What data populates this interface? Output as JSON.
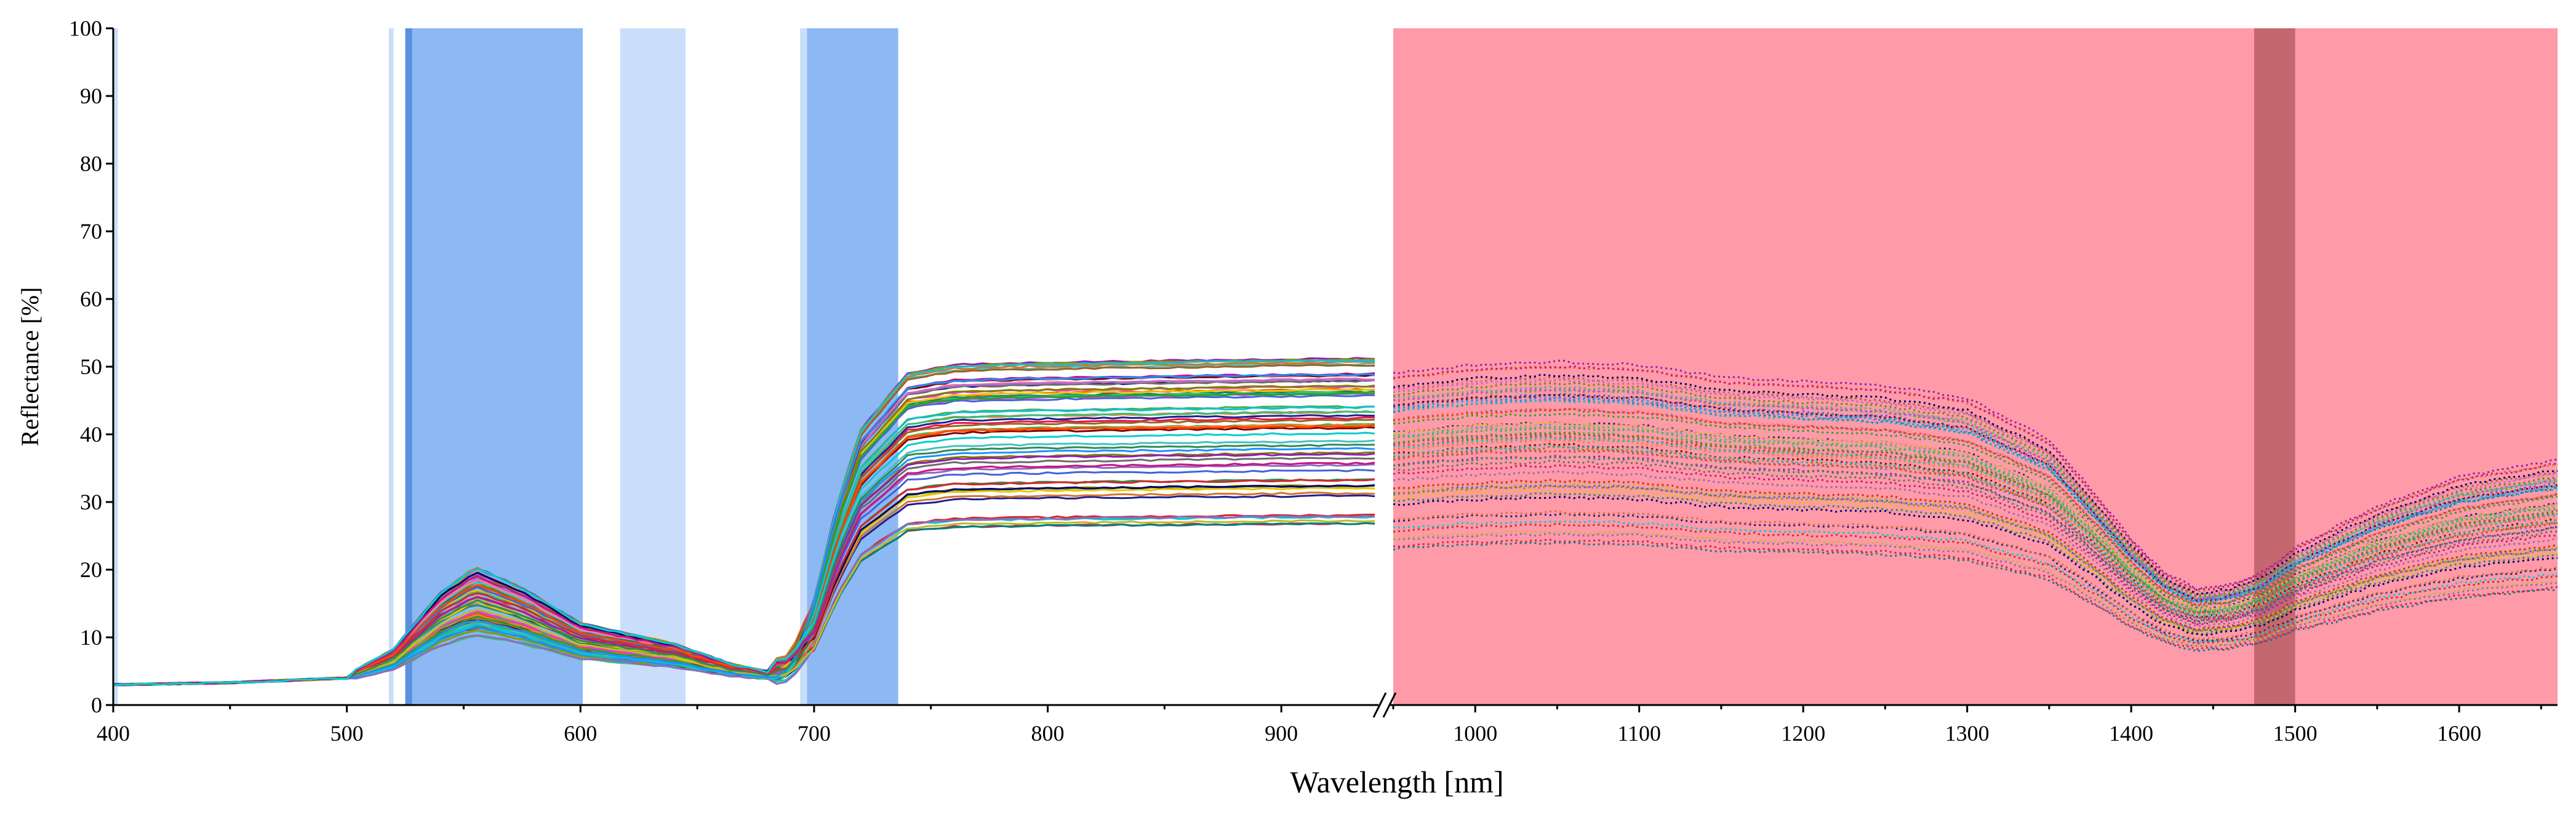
{
  "chart_data": {
    "type": "line",
    "title": "",
    "xlabel": "Wavelength [nm]",
    "ylabel": "Reflectance [%]",
    "ylim": [
      0,
      100
    ],
    "yticks": [
      0,
      10,
      20,
      30,
      40,
      50,
      60,
      70,
      80,
      90,
      100
    ],
    "xlim_left": [
      400,
      940
    ],
    "xlim_right": [
      950,
      1660
    ],
    "xticks_left": [
      400,
      500,
      600,
      700,
      800,
      900
    ],
    "xticks_right": [
      1000,
      1100,
      1200,
      1300,
      1400,
      1500,
      1600
    ],
    "axis_break": "between 940 and 950 nm",
    "highlight_bands": [
      {
        "start": 400,
        "end": 402,
        "color": "#c9defa",
        "shade": "light blue"
      },
      {
        "start": 518,
        "end": 520,
        "color": "#c9defa",
        "shade": "light blue"
      },
      {
        "start": 525,
        "end": 528,
        "color": "#5b8fe0",
        "shade": "dark blue"
      },
      {
        "start": 528,
        "end": 601,
        "color": "#8cb8f3",
        "shade": "medium blue"
      },
      {
        "start": 617,
        "end": 645,
        "color": "#c9defa",
        "shade": "light blue"
      },
      {
        "start": 694,
        "end": 697,
        "color": "#c9defa",
        "shade": "light blue"
      },
      {
        "start": 697,
        "end": 736,
        "color": "#8cb8f3",
        "shade": "medium blue"
      },
      {
        "start": 950,
        "end": 1660,
        "color": "#ff9aa8",
        "shade": "pink"
      },
      {
        "start": 1475,
        "end": 1500,
        "color": "#c4676f",
        "shade": "dark red"
      }
    ],
    "reference_spectrum": {
      "wavelengths": [
        400,
        450,
        500,
        520,
        540,
        555,
        575,
        600,
        620,
        640,
        665,
        680,
        690,
        700,
        710,
        720,
        740,
        760,
        800,
        850,
        900,
        940,
        950,
        1000,
        1050,
        1100,
        1150,
        1200,
        1250,
        1300,
        1350,
        1380,
        1400,
        1420,
        1440,
        1460,
        1480,
        1500,
        1550,
        1600,
        1660
      ],
      "reflectance": [
        3,
        3.3,
        4,
        6.5,
        12,
        14.5,
        12.5,
        9,
        8,
        7,
        5,
        4.3,
        5.5,
        13,
        25,
        34,
        41,
        42,
        42.3,
        42.5,
        42.7,
        42.8,
        40,
        41,
        41.4,
        41,
        39.5,
        39,
        38.5,
        37,
        32,
        25,
        20,
        16,
        14,
        14.5,
        16,
        19,
        24,
        27.5,
        29.5
      ]
    },
    "series_count": 60,
    "series_variation": {
      "nir_plateau_range": [
        25,
        51
      ],
      "green_peak_range": [
        9,
        24
      ],
      "swir_range_at_1050": [
        23,
        49
      ],
      "swir_min_range_at_1440": [
        10,
        19
      ]
    },
    "visible_range_style": "solid",
    "swir_range_style": "dotted"
  }
}
